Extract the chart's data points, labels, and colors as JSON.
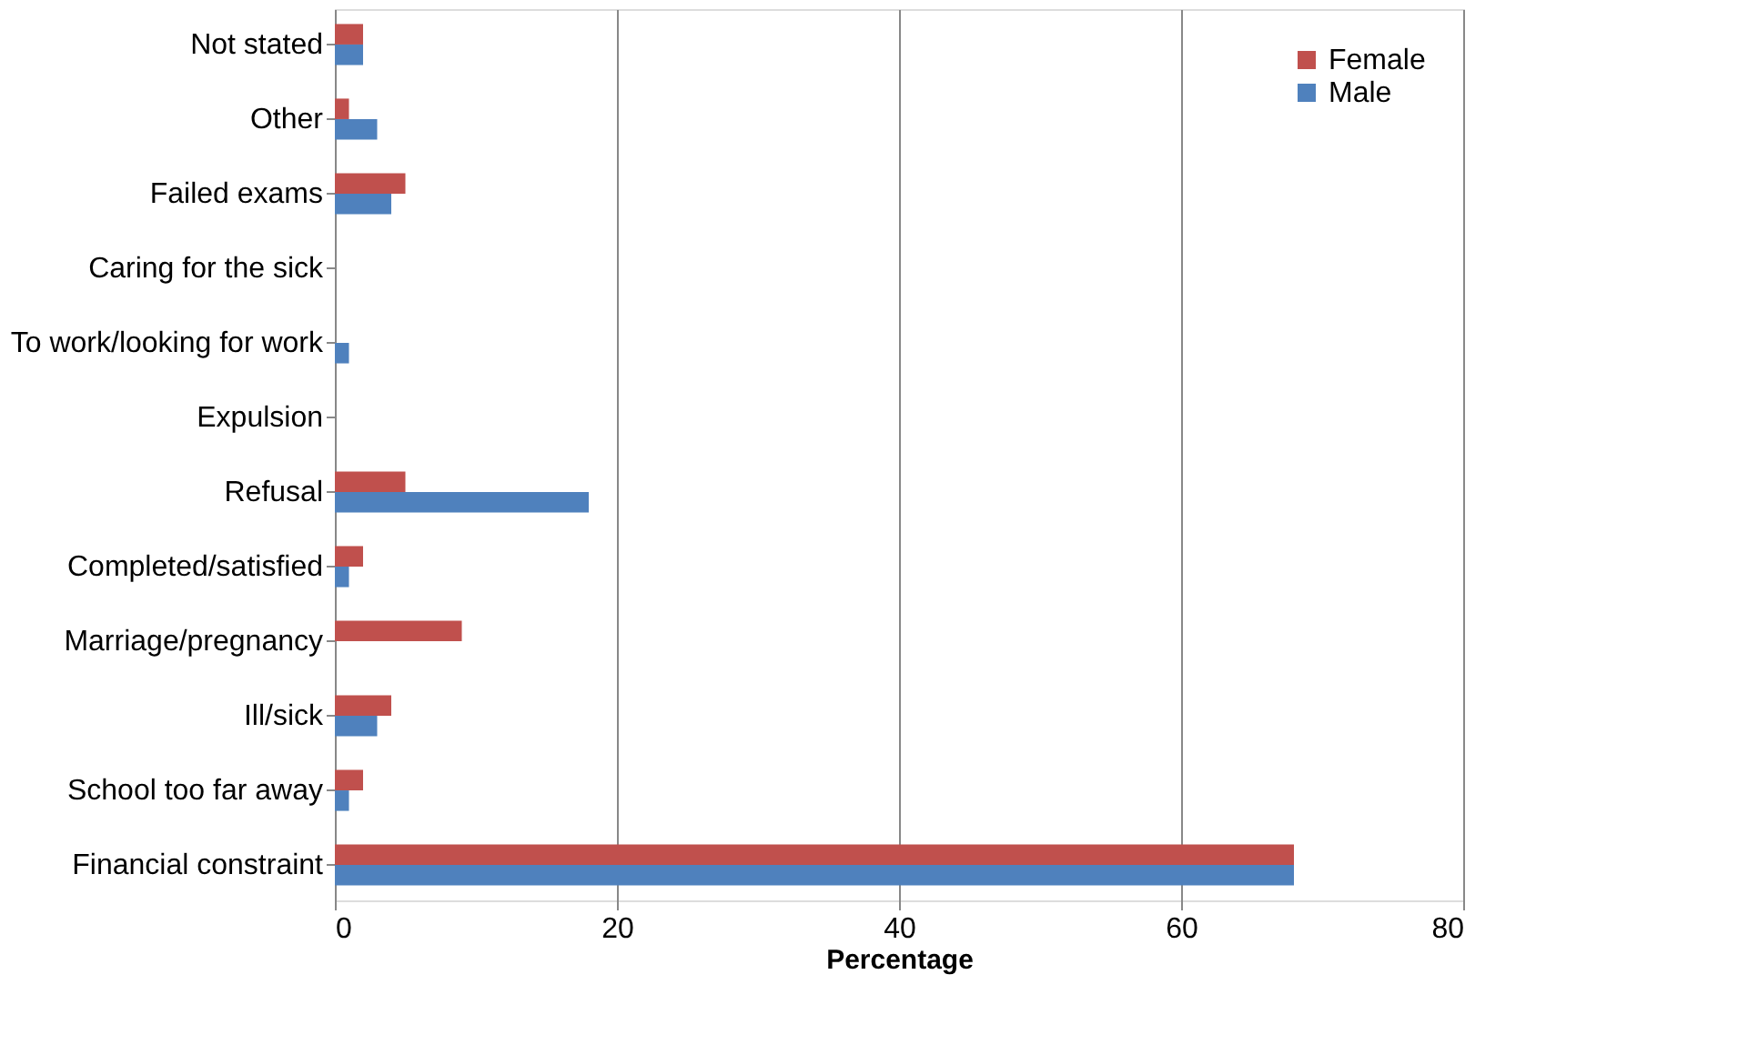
{
  "chart_data": {
    "type": "bar",
    "orientation": "horizontal",
    "xlabel": "Percentage",
    "categories": [
      "Not stated",
      "Other",
      "Failed exams",
      "Caring for the sick",
      "To work/looking for work",
      "Expulsion",
      "Refusal",
      "Completed/satisfied",
      "Marriage/pregnancy",
      "Ill/sick",
      "School too far away",
      "Financial constraint"
    ],
    "series": [
      {
        "name": "Female",
        "color": "#c0504d",
        "values": [
          2,
          1,
          5,
          0,
          0,
          0,
          5,
          2,
          9,
          4,
          2,
          68
        ]
      },
      {
        "name": "Male",
        "color": "#4f81bd",
        "values": [
          2,
          3,
          4,
          0,
          1,
          0,
          18,
          1,
          0,
          3,
          1,
          68
        ]
      }
    ],
    "xlim": [
      0,
      80
    ],
    "xticks": [
      0,
      20,
      40,
      60,
      80
    ],
    "grid": "x",
    "legend": "top right"
  }
}
